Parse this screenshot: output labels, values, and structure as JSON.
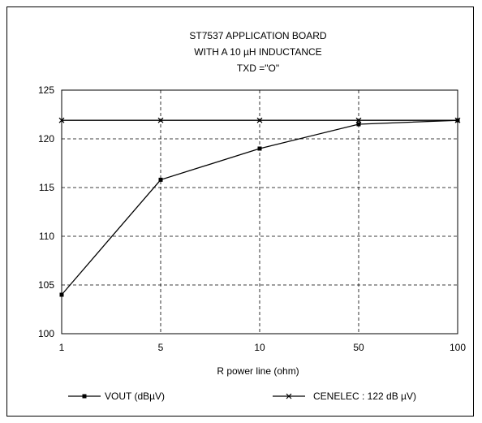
{
  "chart_data": {
    "type": "line",
    "title_lines": [
      "ST7537 APPLICATION BOARD",
      "WITH A 10 µH INDUCTANCE",
      "TXD =\"O\""
    ],
    "xlabel": "R power line (ohm)",
    "ylabel": "",
    "categories": [
      "1",
      "5",
      "10",
      "50",
      "100"
    ],
    "x_scale": "categorical",
    "ylim": [
      100,
      125
    ],
    "yticks": [
      100,
      105,
      110,
      115,
      120,
      125
    ],
    "grid": true,
    "legend_position": "bottom",
    "series": [
      {
        "name": "VOUT (dBµV)",
        "values": [
          104.0,
          115.8,
          119.0,
          121.5,
          121.9
        ],
        "marker": "square",
        "color": "#000000"
      },
      {
        "name": "CENELEC : 122 dB µV)",
        "values": [
          121.9,
          121.9,
          121.9,
          121.9,
          121.9
        ],
        "marker": "cross",
        "color": "#000000"
      }
    ]
  }
}
